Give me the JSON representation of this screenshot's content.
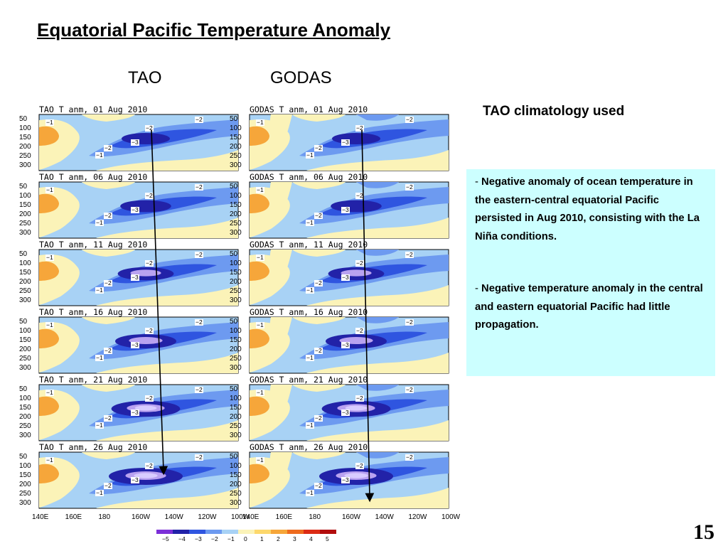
{
  "slide": {
    "title": "Equatorial Pacific Temperature Anomaly",
    "col_label_tao": "TAO",
    "col_label_godas": "GODAS",
    "clim_note": "TAO climatology used",
    "notes": [
      {
        "dash": "- ",
        "text": "Negative anomaly of ocean temperature in the eastern-central  equatorial Pacific persisted in Aug 2010, consisting with the La Niña conditions."
      },
      {
        "dash": "- ",
        "text": "Negative temperature anomaly in the central and eastern equatorial Pacific had little propagation."
      }
    ],
    "page_number": "15"
  },
  "panels": {
    "tao_titles": [
      "TAO T anm, 01 Aug 2010",
      "TAO T anm, 06 Aug 2010",
      "TAO T anm, 11 Aug 2010",
      "TAO T anm, 16 Aug 2010",
      "TAO T anm, 21 Aug 2010",
      "TAO T anm, 26 Aug 2010"
    ],
    "godas_titles": [
      "GODAS T anm, 01 Aug 2010",
      "GODAS T anm, 06 Aug 2010",
      "GODAS T anm, 11 Aug 2010",
      "GODAS T anm, 16 Aug 2010",
      "GODAS T anm, 21 Aug 2010",
      "GODAS T anm, 26 Aug 2010"
    ],
    "depth_ticks": [
      "50",
      "100",
      "150",
      "200",
      "250",
      "300"
    ],
    "lon_ticks": [
      "140E",
      "160E",
      "180",
      "160W",
      "140W",
      "120W",
      "100W"
    ],
    "colorbar_labels": [
      "−5",
      "−4",
      "−3",
      "−2",
      "−1",
      "0",
      "1",
      "2",
      "3",
      "4",
      "5"
    ],
    "colorbar_colors": [
      "#7b2fd8",
      "#2222a8",
      "#2f55e0",
      "#6d9af0",
      "#a8d2f5",
      "#fbf3b8",
      "#fdd86c",
      "#f6a63a",
      "#ee6b1e",
      "#dc2b14",
      "#b20d0d"
    ]
  }
}
